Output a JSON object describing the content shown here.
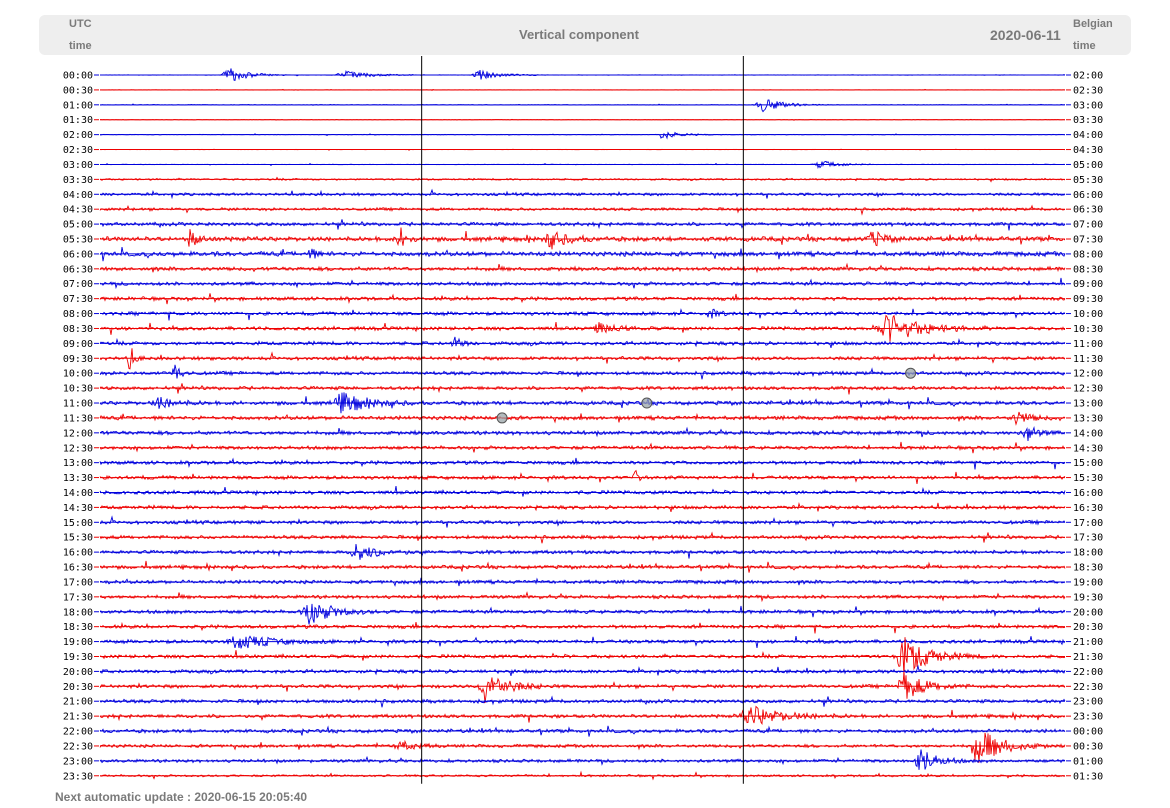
{
  "header": {
    "left_label_line1": "UTC",
    "left_label_line2": "time",
    "title": "Vertical component",
    "date": "2020-06-11",
    "right_label_line1": "Belgian",
    "right_label_line2": "time"
  },
  "footer": {
    "update_text": "Next automatic update : 2020-06-15 20:05:40"
  },
  "colors": {
    "even_trace": "#0000dd",
    "odd_trace": "#ee0000",
    "marker": "#9aa4a8"
  },
  "chart_data": {
    "type": "line",
    "title": "Vertical component",
    "subtitle": "2020-06-11",
    "xlabel": "",
    "ylabel": "",
    "trace_duration_minutes": 30,
    "time_markers_minutes": [
      10,
      20
    ],
    "y_ticks_left_utc": [
      "00:00",
      "00:30",
      "01:00",
      "01:30",
      "02:00",
      "02:30",
      "03:00",
      "03:30",
      "04:00",
      "04:30",
      "05:00",
      "05:30",
      "06:00",
      "06:30",
      "07:00",
      "07:30",
      "08:00",
      "08:30",
      "09:00",
      "09:30",
      "10:00",
      "10:30",
      "11:00",
      "11:30",
      "12:00",
      "12:30",
      "13:00",
      "13:30",
      "14:00",
      "14:30",
      "15:00",
      "15:30",
      "16:00",
      "16:30",
      "17:00",
      "17:30",
      "18:00",
      "18:30",
      "19:00",
      "19:30",
      "20:00",
      "20:30",
      "21:00",
      "21:30",
      "22:00",
      "22:30",
      "23:00",
      "23:30"
    ],
    "y_ticks_right_local": [
      "02:00",
      "02:30",
      "03:00",
      "03:30",
      "04:00",
      "04:30",
      "05:00",
      "05:30",
      "06:00",
      "06:30",
      "07:00",
      "07:30",
      "08:00",
      "08:30",
      "09:00",
      "09:30",
      "10:00",
      "10:30",
      "11:00",
      "11:30",
      "12:00",
      "12:30",
      "13:00",
      "13:30",
      "14:00",
      "14:30",
      "15:00",
      "15:30",
      "16:00",
      "16:30",
      "17:00",
      "17:30",
      "18:00",
      "18:30",
      "19:00",
      "19:30",
      "20:00",
      "20:30",
      "21:00",
      "21:30",
      "22:00",
      "22:30",
      "23:00",
      "23:30",
      "00:00",
      "00:30",
      "01:00",
      "01:30"
    ],
    "noise_level": [
      0.3,
      0.2,
      0.3,
      0.2,
      0.3,
      0.2,
      0.3,
      1.0,
      1.6,
      1.6,
      2.0,
      2.6,
      2.6,
      2.2,
      2.0,
      2.0,
      2.0,
      2.0,
      2.0,
      2.0,
      2.0,
      2.0,
      2.2,
      2.2,
      2.2,
      2.0,
      2.0,
      2.0,
      2.0,
      2.0,
      2.0,
      2.0,
      2.0,
      2.0,
      2.0,
      2.0,
      2.0,
      2.0,
      2.0,
      2.0,
      2.0,
      2.0,
      2.0,
      2.0,
      2.0,
      1.8,
      1.8,
      1.2
    ],
    "events": [
      {
        "trace": 0,
        "minute": 4.0,
        "amplitude": 8,
        "duration_minutes": 1.2
      },
      {
        "trace": 0,
        "minute": 7.6,
        "amplitude": 4,
        "duration_minutes": 1.6
      },
      {
        "trace": 0,
        "minute": 11.8,
        "amplitude": 5,
        "duration_minutes": 1.3
      },
      {
        "trace": 2,
        "minute": 20.6,
        "amplitude": 7,
        "duration_minutes": 1.3
      },
      {
        "trace": 4,
        "minute": 17.5,
        "amplitude": 4,
        "duration_minutes": 1.2
      },
      {
        "trace": 6,
        "minute": 22.4,
        "amplitude": 4,
        "duration_minutes": 1.2
      },
      {
        "trace": 11,
        "minute": 9.3,
        "amplitude": 14,
        "duration_minutes": 0.4
      },
      {
        "trace": 11,
        "minute": 14.0,
        "amplitude": 7,
        "duration_minutes": 1.2
      },
      {
        "trace": 11,
        "minute": 2.8,
        "amplitude": 8,
        "duration_minutes": 0.6
      },
      {
        "trace": 11,
        "minute": 24.0,
        "amplitude": 8,
        "duration_minutes": 0.8
      },
      {
        "trace": 12,
        "minute": 6.5,
        "amplitude": 10,
        "duration_minutes": 0.3
      },
      {
        "trace": 16,
        "minute": 19.0,
        "amplitude": 4,
        "duration_minutes": 0.5
      },
      {
        "trace": 17,
        "minute": 15.5,
        "amplitude": 5,
        "duration_minutes": 1.2
      },
      {
        "trace": 17,
        "minute": 24.5,
        "amplitude": 14,
        "duration_minutes": 2.0
      },
      {
        "trace": 18,
        "minute": 11.0,
        "amplitude": 6,
        "duration_minutes": 0.5
      },
      {
        "trace": 19,
        "minute": 0.9,
        "amplitude": 12,
        "duration_minutes": 0.3
      },
      {
        "trace": 20,
        "minute": 2.3,
        "amplitude": 10,
        "duration_minutes": 0.4
      },
      {
        "trace": 22,
        "minute": 7.5,
        "amplitude": 11,
        "duration_minutes": 1.5
      },
      {
        "trace": 22,
        "minute": 1.8,
        "amplitude": 6,
        "duration_minutes": 1.0
      },
      {
        "trace": 23,
        "minute": 28.5,
        "amplitude": 7,
        "duration_minutes": 0.8
      },
      {
        "trace": 24,
        "minute": 28.8,
        "amplitude": 9,
        "duration_minutes": 0.6
      },
      {
        "trace": 27,
        "minute": 16.6,
        "amplitude": 6,
        "duration_minutes": 0.3
      },
      {
        "trace": 32,
        "minute": 8.0,
        "amplitude": 8,
        "duration_minutes": 1.3
      },
      {
        "trace": 36,
        "minute": 6.5,
        "amplitude": 12,
        "duration_minutes": 1.4
      },
      {
        "trace": 38,
        "minute": 4.3,
        "amplitude": 7,
        "duration_minutes": 2.0
      },
      {
        "trace": 39,
        "minute": 25.0,
        "amplitude": 18,
        "duration_minutes": 1.6
      },
      {
        "trace": 41,
        "minute": 12.0,
        "amplitude": 16,
        "duration_minutes": 1.3
      },
      {
        "trace": 41,
        "minute": 25.0,
        "amplitude": 14,
        "duration_minutes": 1.3
      },
      {
        "trace": 43,
        "minute": 20.2,
        "amplitude": 10,
        "duration_minutes": 2.0
      },
      {
        "trace": 45,
        "minute": 27.3,
        "amplitude": 18,
        "duration_minutes": 1.5
      },
      {
        "trace": 46,
        "minute": 25.5,
        "amplitude": 12,
        "duration_minutes": 1.0
      },
      {
        "trace": 45,
        "minute": 9.3,
        "amplitude": 5,
        "duration_minutes": 1.0
      }
    ],
    "markers": [
      {
        "trace": 20,
        "minute": 25.2
      },
      {
        "trace": 22,
        "minute": 17.0
      },
      {
        "trace": 23,
        "minute": 12.5
      }
    ],
    "grid": false
  }
}
